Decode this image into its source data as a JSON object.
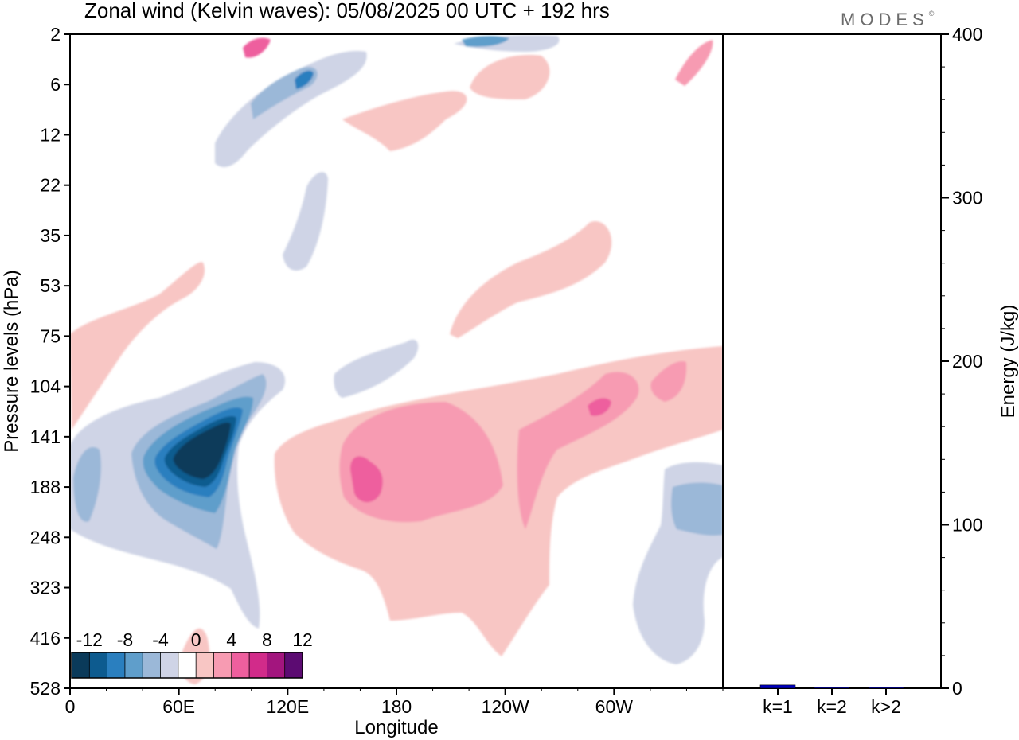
{
  "chart_data": [
    {
      "type": "heatmap",
      "title": "Zonal wind (Kelvin waves):  05/08/2025  00 UTC  + 192 hrs",
      "xlabel": "Longitude",
      "ylabel": "Pressure levels (hPa)",
      "x_ticks": [
        "0",
        "60E",
        "120E",
        "180",
        "120W",
        "60W"
      ],
      "x_tick_values": [
        0,
        60,
        120,
        180,
        240,
        300
      ],
      "x_range": [
        0,
        360
      ],
      "y_ticks": [
        "2",
        "6",
        "12",
        "22",
        "35",
        "53",
        "75",
        "104",
        "141",
        "188",
        "248",
        "323",
        "416",
        "528"
      ],
      "colorbar": {
        "labels": [
          "-12",
          "-8",
          "-4",
          "0",
          "4",
          "8",
          "12"
        ],
        "levels": [
          -14,
          -12,
          -10,
          -8,
          -6,
          -4,
          -2,
          2,
          4,
          6,
          8,
          10,
          12,
          14
        ],
        "colors": [
          "#0a3a5a",
          "#0d5b8f",
          "#2a7fbf",
          "#5f9ecb",
          "#9bb8d8",
          "#cfd4e6",
          "#ffffff",
          "#f8c6c4",
          "#f79bb2",
          "#ee5f9e",
          "#d22b8a",
          "#a3157e",
          "#5c0b72"
        ]
      },
      "features": [
        {
          "name": "strong easterly core",
          "lon": 72,
          "level": "141",
          "value": -14
        },
        {
          "name": "westerly anomaly",
          "lon": 165,
          "level": "188",
          "value": 7
        },
        {
          "name": "westerly anomaly",
          "lon": 287,
          "level": "125",
          "value": 7
        },
        {
          "name": "easterly anomaly",
          "lon": 340,
          "level": "220",
          "value": -5
        },
        {
          "name": "easterly anomaly",
          "lon": 7,
          "level": "188",
          "value": -5
        }
      ]
    },
    {
      "type": "bar",
      "ylabel": "Energy (J/kg)",
      "categories": [
        "k=1",
        "k=2",
        "k>2"
      ],
      "values": [
        2,
        0.2,
        0.3
      ],
      "ylim": [
        0,
        400
      ],
      "y_ticks": [
        "0",
        "100",
        "200",
        "300",
        "400"
      ],
      "y_tick_values": [
        0,
        100,
        200,
        300,
        400
      ],
      "bar_color": "#0000c0"
    }
  ],
  "logo": "MODES",
  "logo_mark": "©"
}
